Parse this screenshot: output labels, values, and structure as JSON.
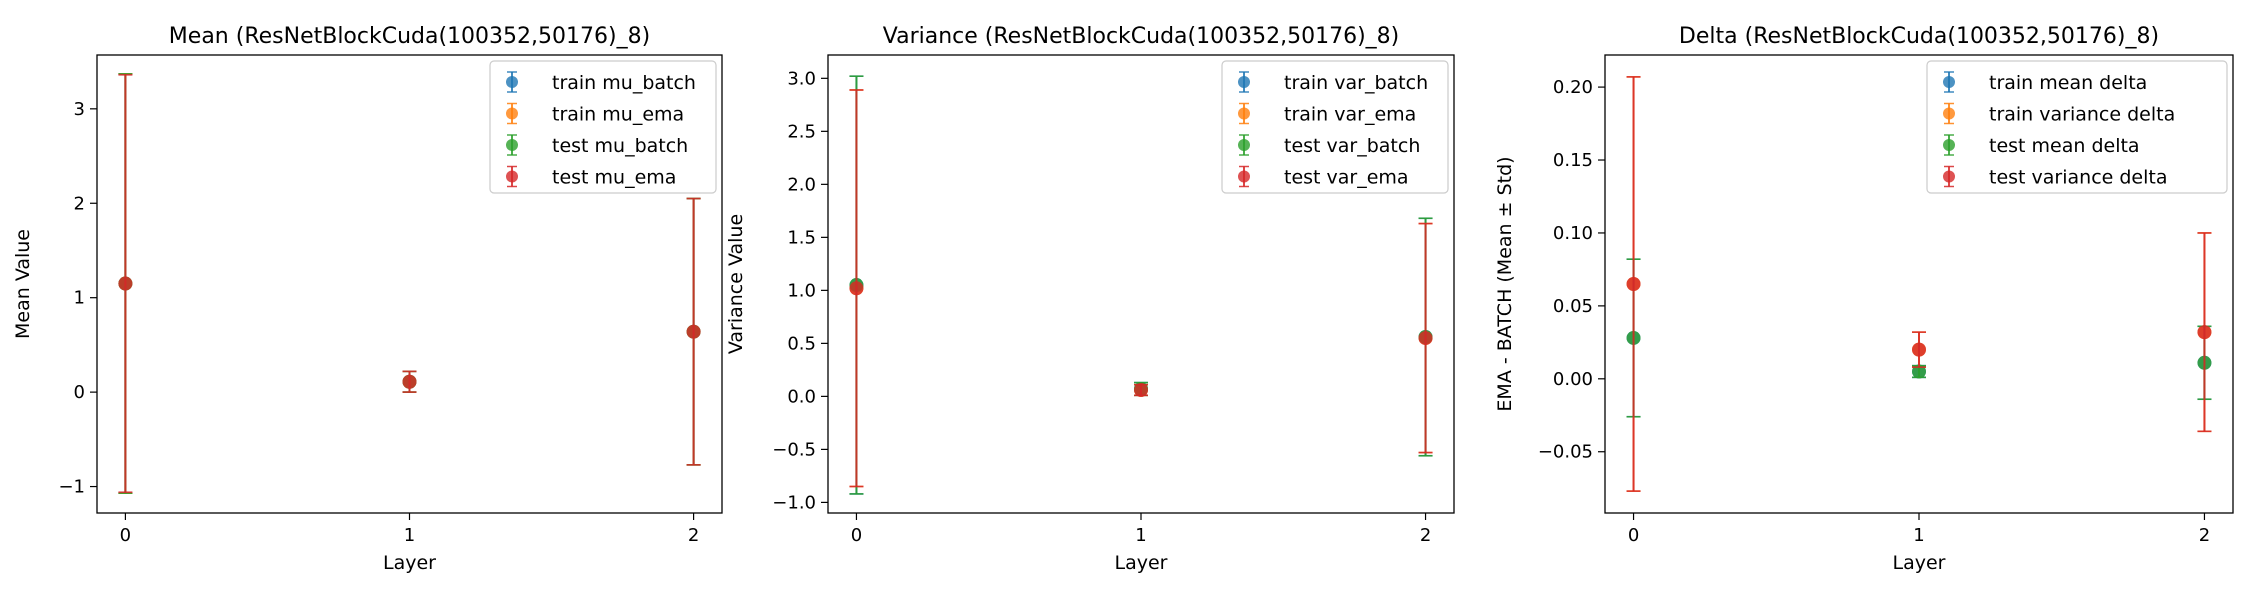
{
  "chart_data": [
    {
      "type": "errorbar",
      "title": "Mean (ResNetBlockCuda(100352,50176)_8)",
      "xlabel": "Layer",
      "ylabel": "Mean Value",
      "xlim": [
        -0.1,
        2.1
      ],
      "ylim": [
        -1.28,
        3.57
      ],
      "xticks": [
        0,
        1,
        2
      ],
      "xtick_labels": [
        "0",
        "1",
        "2"
      ],
      "yticks": [
        -1,
        0,
        1,
        2,
        3
      ],
      "ytick_labels": [
        "−1",
        "0",
        "1",
        "2",
        "3"
      ],
      "legend_position": "upper right",
      "grid": false,
      "series": [
        {
          "name": "train mu_batch",
          "color": "#1f77b4",
          "x": [
            0,
            1,
            2
          ],
          "y": [
            1.15,
            0.11,
            0.64
          ],
          "err": [
            2.22,
            0.11,
            1.41
          ]
        },
        {
          "name": "train mu_ema",
          "color": "#ff7f0e",
          "x": [
            0,
            1,
            2
          ],
          "y": [
            1.15,
            0.11,
            0.64
          ],
          "err": [
            2.22,
            0.11,
            1.41
          ]
        },
        {
          "name": "test mu_batch",
          "color": "#2ca02c",
          "x": [
            0,
            1,
            2
          ],
          "y": [
            1.15,
            0.11,
            0.64
          ],
          "err": [
            2.22,
            0.11,
            1.41
          ]
        },
        {
          "name": "test mu_ema",
          "color": "#d62728",
          "x": [
            0,
            1,
            2
          ],
          "y": [
            1.15,
            0.11,
            0.64
          ],
          "err": [
            2.21,
            0.11,
            1.41
          ]
        }
      ]
    },
    {
      "type": "errorbar",
      "title": "Variance (ResNetBlockCuda(100352,50176)_8)",
      "xlabel": "Layer",
      "ylabel": "Variance Value",
      "xlim": [
        -0.1,
        2.1
      ],
      "ylim": [
        -1.1,
        3.22
      ],
      "xticks": [
        0,
        1,
        2
      ],
      "xtick_labels": [
        "0",
        "1",
        "2"
      ],
      "yticks": [
        -1.0,
        -0.5,
        0.0,
        0.5,
        1.0,
        1.5,
        2.0,
        2.5,
        3.0
      ],
      "ytick_labels": [
        "−1.0",
        "−0.5",
        "0.0",
        "0.5",
        "1.0",
        "1.5",
        "2.0",
        "2.5",
        "3.0"
      ],
      "legend_position": "upper right",
      "grid": false,
      "series": [
        {
          "name": "train var_batch",
          "color": "#1f77b4",
          "x": [
            0,
            1,
            2
          ],
          "y": [
            1.05,
            0.07,
            0.56
          ],
          "err": [
            1.97,
            0.06,
            1.12
          ]
        },
        {
          "name": "train var_ema",
          "color": "#ff7f0e",
          "x": [
            0,
            1,
            2
          ],
          "y": [
            1.02,
            0.06,
            0.55
          ],
          "err": [
            1.87,
            0.05,
            1.08
          ]
        },
        {
          "name": "test var_batch",
          "color": "#2ca02c",
          "x": [
            0,
            1,
            2
          ],
          "y": [
            1.05,
            0.07,
            0.56
          ],
          "err": [
            1.97,
            0.06,
            1.12
          ]
        },
        {
          "name": "test var_ema",
          "color": "#d62728",
          "x": [
            0,
            1,
            2
          ],
          "y": [
            1.02,
            0.06,
            0.55
          ],
          "err": [
            1.87,
            0.05,
            1.08
          ]
        }
      ]
    },
    {
      "type": "errorbar",
      "title": "Delta (ResNetBlockCuda(100352,50176)_8)",
      "xlabel": "Layer",
      "ylabel": "EMA - BATCH (Mean ± Std)",
      "xlim": [
        -0.1,
        2.1
      ],
      "ylim": [
        -0.092,
        0.222
      ],
      "xticks": [
        0,
        1,
        2
      ],
      "xtick_labels": [
        "0",
        "1",
        "2"
      ],
      "yticks": [
        -0.05,
        0.0,
        0.05,
        0.1,
        0.15,
        0.2
      ],
      "ytick_labels": [
        "−0.05",
        "0.00",
        "0.05",
        "0.10",
        "0.15",
        "0.20"
      ],
      "legend_position": "upper right",
      "grid": false,
      "series": [
        {
          "name": "train mean delta",
          "color": "#1f77b4",
          "x": [
            0,
            1,
            2
          ],
          "y": [
            0.028,
            0.005,
            0.011
          ],
          "err": [
            0.054,
            0.004,
            0.025
          ]
        },
        {
          "name": "train variance delta",
          "color": "#ff7f0e",
          "x": [
            0,
            1,
            2
          ],
          "y": [
            0.065,
            0.02,
            0.032
          ],
          "err": [
            0.142,
            0.012,
            0.068
          ]
        },
        {
          "name": "test mean delta",
          "color": "#2ca02c",
          "x": [
            0,
            1,
            2
          ],
          "y": [
            0.028,
            0.005,
            0.011
          ],
          "err": [
            0.054,
            0.004,
            0.025
          ]
        },
        {
          "name": "test variance delta",
          "color": "#d62728",
          "x": [
            0,
            1,
            2
          ],
          "y": [
            0.065,
            0.02,
            0.032
          ],
          "err": [
            0.142,
            0.012,
            0.068
          ]
        }
      ]
    }
  ]
}
